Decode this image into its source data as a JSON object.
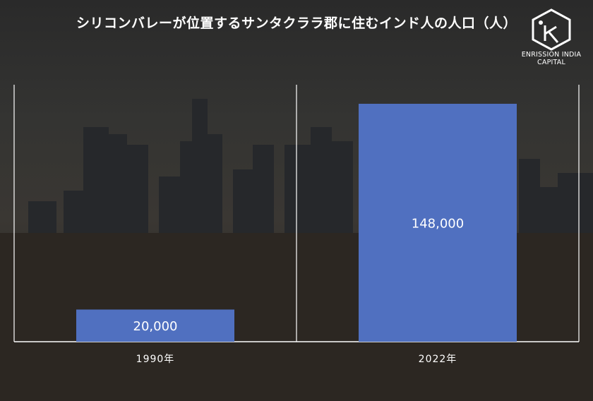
{
  "title": "シリコンバレーが位置するサンタクララ郡に住むインド人の人口（人）",
  "logo": {
    "text": "ENRISSION INDIA CAPITAL"
  },
  "colors": {
    "bar": "#5070c0",
    "axis": "#ffffff",
    "text": "#ffffff"
  },
  "chart_data": {
    "type": "bar",
    "categories": [
      "1990年",
      "2022年"
    ],
    "values": [
      20000,
      148000
    ],
    "value_labels": [
      "20,000",
      "148,000"
    ],
    "ylim": [
      0,
      160000
    ],
    "grid": false,
    "legend": "none"
  }
}
